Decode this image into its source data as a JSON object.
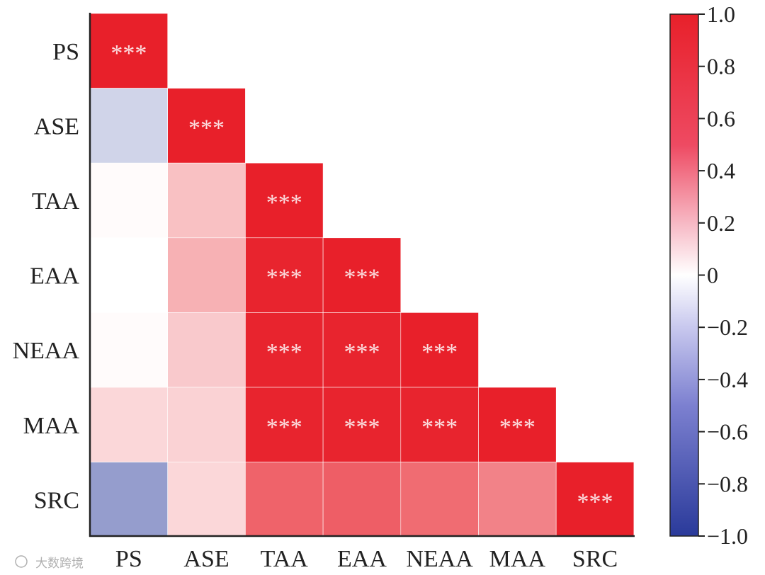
{
  "chart_data": {
    "type": "heatmap",
    "title": "",
    "xlabel": "",
    "ylabel": "",
    "layout": "lower-triangle",
    "variables": [
      "PS",
      "ASE",
      "TAA",
      "EAA",
      "NEAA",
      "MAA",
      "SRC"
    ],
    "matrix": [
      [
        1.0,
        null,
        null,
        null,
        null,
        null,
        null
      ],
      [
        -0.22,
        1.0,
        null,
        null,
        null,
        null,
        null
      ],
      [
        0.02,
        0.28,
        1.0,
        null,
        null,
        null,
        null
      ],
      [
        0.0,
        0.35,
        0.98,
        1.0,
        null,
        null,
        null
      ],
      [
        0.02,
        0.24,
        0.98,
        0.98,
        1.0,
        null,
        null
      ],
      [
        0.18,
        0.2,
        0.98,
        0.98,
        0.98,
        1.0,
        null
      ],
      [
        -0.5,
        0.18,
        0.7,
        0.72,
        0.66,
        0.56,
        1.0
      ]
    ],
    "significance": [
      [
        "***",
        "",
        "",
        "",
        "",
        "",
        ""
      ],
      [
        "",
        "***",
        "",
        "",
        "",
        "",
        ""
      ],
      [
        "",
        "",
        "***",
        "",
        "",
        "",
        ""
      ],
      [
        "",
        "",
        "***",
        "***",
        "",
        "",
        ""
      ],
      [
        "",
        "",
        "***",
        "***",
        "***",
        "",
        ""
      ],
      [
        "",
        "",
        "***",
        "***",
        "***",
        "***",
        ""
      ],
      [
        "",
        "",
        "",
        "",
        "",
        "",
        "***"
      ]
    ],
    "colorbar": {
      "min": -1.0,
      "max": 1.0,
      "ticks": [
        1.0,
        0.8,
        0.6,
        0.4,
        0.2,
        0,
        -0.2,
        -0.4,
        -0.6,
        -0.8,
        -1.0
      ],
      "tick_labels": [
        "1.0",
        "0.8",
        "0.6",
        "0.4",
        "0.2",
        "0",
        "−0.2",
        "−0.4",
        "−0.6",
        "−0.8",
        "−1.0"
      ],
      "colors": {
        "negative": "#2a3a9a",
        "neutral": "#ffffff",
        "positive": "#e8202a"
      }
    }
  },
  "watermark": "大数跨境"
}
